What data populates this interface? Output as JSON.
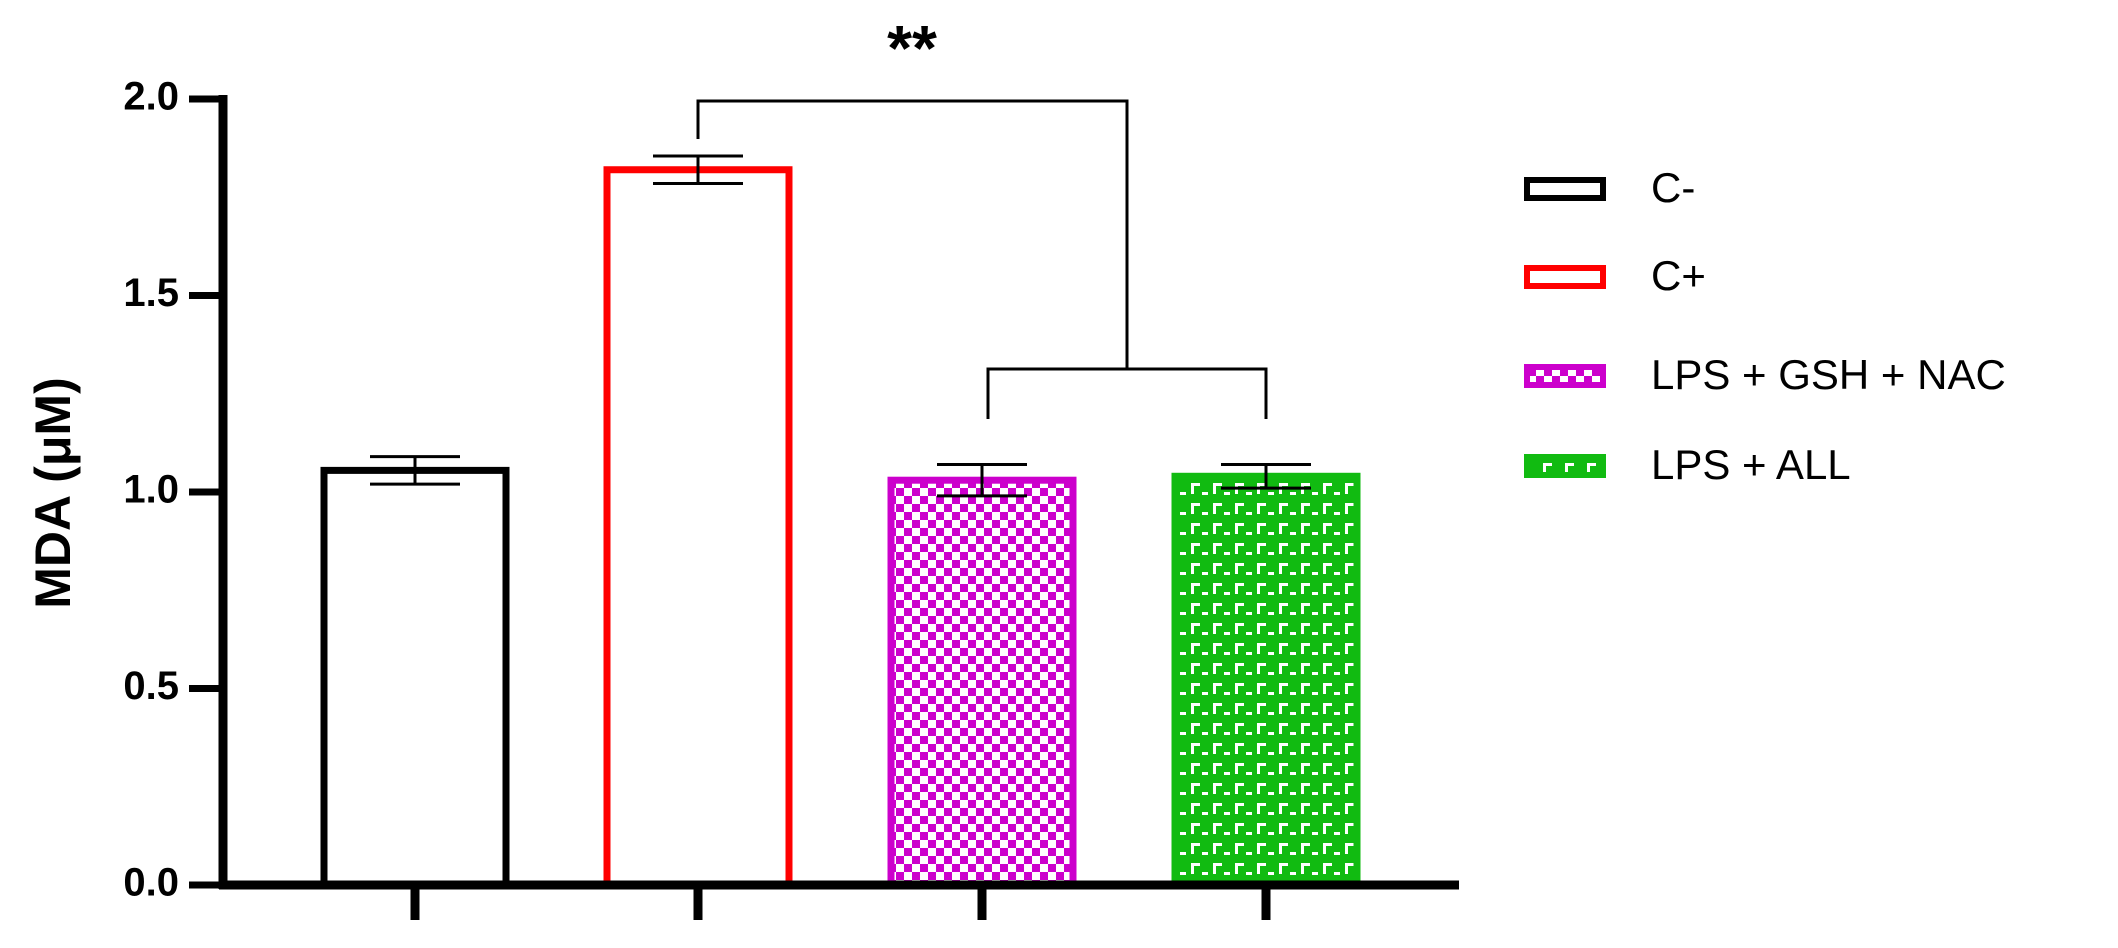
{
  "chart_data": {
    "type": "bar",
    "y_label": "MDA (μM)",
    "categories": [
      null,
      null,
      null,
      null
    ],
    "series": [
      {
        "name": "C-",
        "color": "#000000",
        "fill": "none",
        "values": [
          1.055,
          null,
          null,
          null
        ],
        "errors": [
          0.035,
          null,
          null,
          null
        ]
      },
      {
        "name": "C+",
        "color": "#ff0000",
        "fill": "none",
        "values": [
          null,
          1.82,
          null,
          null
        ],
        "errors": [
          null,
          0.035,
          null,
          null
        ]
      },
      {
        "name": "LPS + GSH + NAC",
        "color": "#cc00cc",
        "fill": "checker",
        "values": [
          null,
          null,
          1.03,
          null
        ],
        "errors": [
          null,
          null,
          0.04,
          null
        ]
      },
      {
        "name": "LPS + ALL",
        "color": "#11bb11",
        "fill": "dash",
        "values": [
          null,
          null,
          null,
          1.04
        ],
        "errors": [
          null,
          null,
          null,
          0.03
        ]
      }
    ],
    "error_color": "#000000",
    "ylim": [
      0,
      2
    ],
    "yticks": [
      {
        "value": 0,
        "label": "0.0"
      },
      0.5,
      {
        "value": 1,
        "label": "1.0"
      },
      1.5,
      {
        "value": 2,
        "label": "2.0"
      }
    ],
    "annotations": [
      {
        "text": "**"
      }
    ],
    "legend": "right"
  }
}
